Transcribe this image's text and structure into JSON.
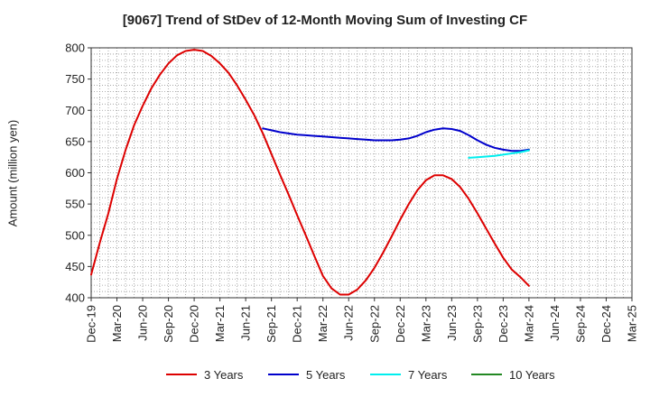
{
  "chart_data": {
    "type": "line",
    "title": "[9067]  Trend of StDev of 12-Month Moving Sum of Investing CF",
    "ylabel": "Amount (million yen)",
    "xlabel": "",
    "ylim": [
      400,
      800
    ],
    "yticks": [
      400,
      450,
      500,
      550,
      600,
      650,
      700,
      750,
      800
    ],
    "xticks": [
      "Dec-19",
      "Mar-20",
      "Jun-20",
      "Sep-20",
      "Dec-20",
      "Mar-21",
      "Jun-21",
      "Sep-21",
      "Dec-21",
      "Mar-22",
      "Jun-22",
      "Sep-22",
      "Dec-22",
      "Mar-23",
      "Jun-23",
      "Sep-23",
      "Dec-23",
      "Mar-24",
      "Jun-24",
      "Sep-24",
      "Dec-24",
      "Mar-25"
    ],
    "grid": true,
    "legend_position": "bottom",
    "series": [
      {
        "name": "3 Years",
        "color": "#dd0000",
        "points": [
          [
            "Dec-19",
            437
          ],
          [
            "Jan-20",
            488
          ],
          [
            "Feb-20",
            535
          ],
          [
            "Mar-20",
            590
          ],
          [
            "Apr-20",
            636
          ],
          [
            "May-20",
            676
          ],
          [
            "Jun-20",
            707
          ],
          [
            "Jul-20",
            735
          ],
          [
            "Aug-20",
            757
          ],
          [
            "Sep-20",
            775
          ],
          [
            "Oct-20",
            788
          ],
          [
            "Nov-20",
            795
          ],
          [
            "Dec-20",
            797
          ],
          [
            "Jan-21",
            795
          ],
          [
            "Feb-21",
            787
          ],
          [
            "Mar-21",
            775
          ],
          [
            "Apr-21",
            760
          ],
          [
            "May-21",
            740
          ],
          [
            "Jun-21",
            717
          ],
          [
            "Jul-21",
            692
          ],
          [
            "Aug-21",
            663
          ],
          [
            "Sep-21",
            630
          ],
          [
            "Oct-21",
            597
          ],
          [
            "Nov-21",
            565
          ],
          [
            "Dec-21",
            532
          ],
          [
            "Jan-22",
            500
          ],
          [
            "Feb-22",
            467
          ],
          [
            "Mar-22",
            435
          ],
          [
            "Apr-22",
            415
          ],
          [
            "May-22",
            405
          ],
          [
            "Jun-22",
            405
          ],
          [
            "Jul-22",
            413
          ],
          [
            "Aug-22",
            428
          ],
          [
            "Sep-22",
            448
          ],
          [
            "Oct-22",
            472
          ],
          [
            "Nov-22",
            498
          ],
          [
            "Dec-22",
            525
          ],
          [
            "Jan-23",
            550
          ],
          [
            "Feb-23",
            572
          ],
          [
            "Mar-23",
            588
          ],
          [
            "Apr-23",
            596
          ],
          [
            "May-23",
            596
          ],
          [
            "Jun-23",
            590
          ],
          [
            "Jul-23",
            577
          ],
          [
            "Aug-23",
            558
          ],
          [
            "Sep-23",
            535
          ],
          [
            "Oct-23",
            511
          ],
          [
            "Nov-23",
            487
          ],
          [
            "Dec-23",
            464
          ],
          [
            "Jan-24",
            445
          ],
          [
            "Feb-24",
            433
          ],
          [
            "Mar-24",
            419
          ]
        ]
      },
      {
        "name": "5 Years",
        "color": "#0000cc",
        "points": [
          [
            "Aug-21",
            671
          ],
          [
            "Sep-21",
            668
          ],
          [
            "Oct-21",
            665
          ],
          [
            "Nov-21",
            663
          ],
          [
            "Dec-21",
            661
          ],
          [
            "Jan-22",
            660
          ],
          [
            "Feb-22",
            659
          ],
          [
            "Mar-22",
            658
          ],
          [
            "Apr-22",
            657
          ],
          [
            "May-22",
            656
          ],
          [
            "Jun-22",
            655
          ],
          [
            "Jul-22",
            654
          ],
          [
            "Aug-22",
            653
          ],
          [
            "Sep-22",
            652
          ],
          [
            "Oct-22",
            652
          ],
          [
            "Nov-22",
            652
          ],
          [
            "Dec-22",
            653
          ],
          [
            "Jan-23",
            655
          ],
          [
            "Feb-23",
            659
          ],
          [
            "Mar-23",
            665
          ],
          [
            "Apr-23",
            669
          ],
          [
            "May-23",
            671
          ],
          [
            "Jun-23",
            670
          ],
          [
            "Jul-23",
            667
          ],
          [
            "Aug-23",
            660
          ],
          [
            "Sep-23",
            652
          ],
          [
            "Oct-23",
            645
          ],
          [
            "Nov-23",
            640
          ],
          [
            "Dec-23",
            637
          ],
          [
            "Jan-24",
            635
          ],
          [
            "Feb-24",
            635
          ],
          [
            "Mar-24",
            637
          ]
        ]
      },
      {
        "name": "7 Years",
        "color": "#00eeee",
        "points": [
          [
            "Aug-23",
            624
          ],
          [
            "Sep-23",
            625
          ],
          [
            "Oct-23",
            626
          ],
          [
            "Nov-23",
            627
          ],
          [
            "Dec-23",
            629
          ],
          [
            "Jan-24",
            631
          ],
          [
            "Feb-24",
            633
          ],
          [
            "Mar-24",
            636
          ]
        ]
      },
      {
        "name": "10 Years",
        "color": "#228822",
        "points": []
      }
    ]
  }
}
